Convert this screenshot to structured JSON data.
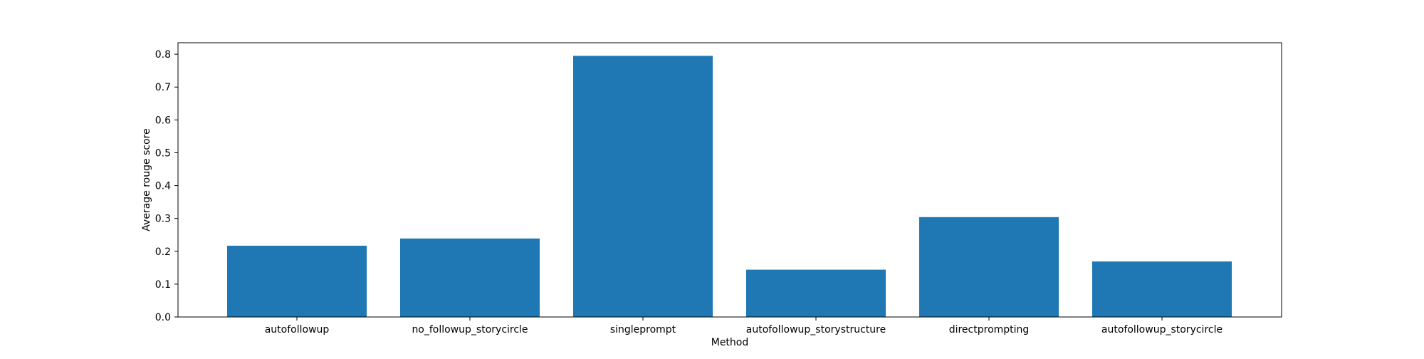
{
  "chart_data": {
    "type": "bar",
    "categories": [
      "autofollowup",
      "no_followup_storycircle",
      "singleprompt",
      "autofollowup_storystructure",
      "directprompting",
      "autofollowup_storycircle"
    ],
    "values": [
      0.217,
      0.239,
      0.795,
      0.144,
      0.304,
      0.169
    ],
    "title": "",
    "xlabel": "Method",
    "ylabel": "Average rouge score",
    "ylim": [
      0,
      0.835
    ],
    "yticks": [
      0.0,
      0.1,
      0.2,
      0.3,
      0.4,
      0.5,
      0.6,
      0.7,
      0.8
    ],
    "ytick_labels": [
      "0.0",
      "0.1",
      "0.2",
      "0.3",
      "0.4",
      "0.5",
      "0.6",
      "0.7",
      "0.8"
    ],
    "grid": false,
    "legend": "none",
    "bar_color": "#1f77b4"
  }
}
